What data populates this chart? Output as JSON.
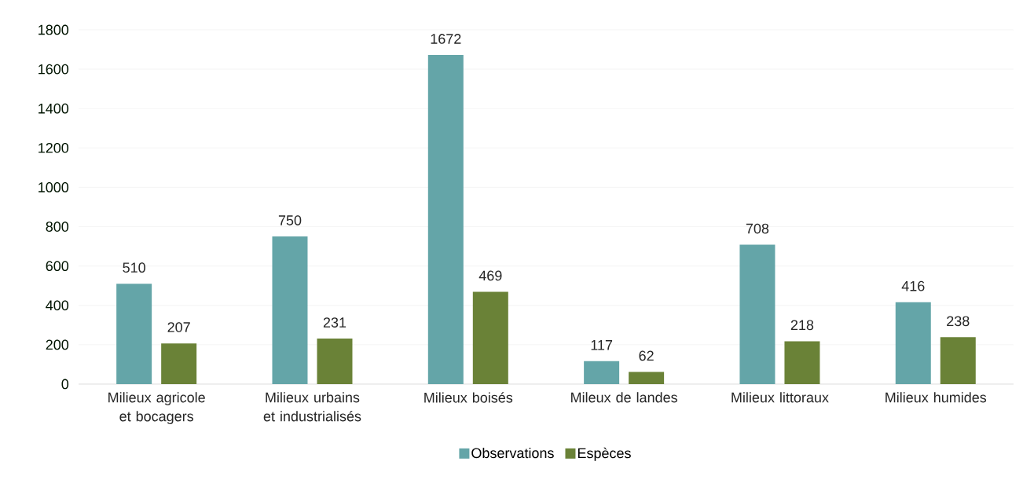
{
  "chart_data": {
    "type": "bar",
    "categories": [
      "Milieux agricole et bocagers",
      "Milieux urbains et industrialisés",
      "Milieux boisés",
      "Mileux de landes",
      "Milieux littoraux",
      "Milieux humides"
    ],
    "series": [
      {
        "name": "Observations",
        "color": "#64a5a8",
        "values": [
          510,
          750,
          1672,
          117,
          708,
          416
        ]
      },
      {
        "name": "Espèces",
        "color": "#6a8237",
        "values": [
          207,
          231,
          469,
          62,
          218,
          238
        ]
      }
    ],
    "ylim": [
      0,
      1800
    ],
    "yticks": [
      0,
      200,
      400,
      600,
      800,
      1000,
      1200,
      1400,
      1600,
      1800
    ],
    "grid": "y",
    "legend": "bottom",
    "data_labels": true
  }
}
